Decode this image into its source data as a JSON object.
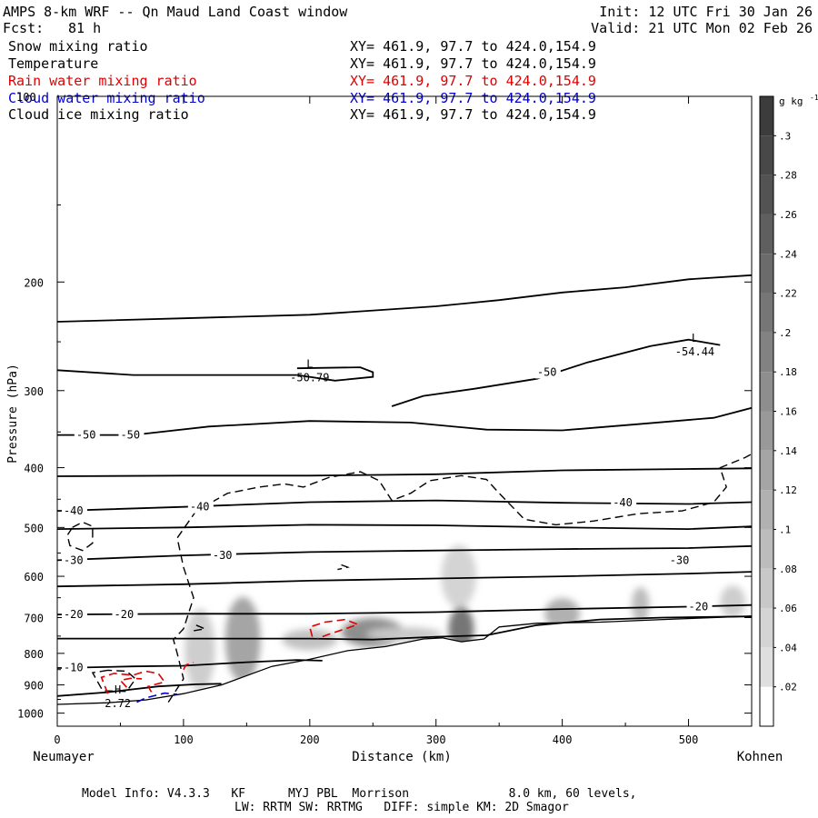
{
  "header": {
    "title": "AMPS 8-km WRF -- Qn Maud Land Coast window",
    "fcst_label": "Fcst:",
    "fcst_value": "81 h",
    "init": "Init: 12 UTC Fri 30 Jan 26",
    "valid": "Valid: 21 UTC Mon 02 Feb 26"
  },
  "fields": [
    {
      "name": "Snow mixing ratio",
      "xy": "XY= 461.9, 97.7 to 424.0,154.9",
      "color": "#000000"
    },
    {
      "name": "Temperature",
      "xy": "XY= 461.9, 97.7 to 424.0,154.9",
      "color": "#000000"
    },
    {
      "name": "Rain water mixing ratio",
      "xy": "XY= 461.9, 97.7 to 424.0,154.9",
      "color": "#e00000"
    },
    {
      "name": "Cloud water mixing ratio",
      "xy": "XY= 461.9, 97.7 to 424.0,154.9",
      "color": "#0000d0"
    },
    {
      "name": "Cloud ice mixing ratio",
      "xy": "XY= 461.9, 97.7 to 424.0,154.9",
      "color": "#000000"
    }
  ],
  "chart_data": {
    "type": "cross-section",
    "xlabel": "Distance (km)",
    "ylabel": "Pressure (hPa)",
    "xlim": [
      0,
      550
    ],
    "ylim": [
      1050,
      100
    ],
    "x_ticks": [
      0,
      100,
      200,
      300,
      400,
      500
    ],
    "y_ticks": [
      200,
      300,
      400,
      500,
      600,
      700,
      800,
      900,
      1000
    ],
    "y_tick_labels": [
      "200",
      "300",
      "400",
      "500",
      "600",
      "700",
      "800",
      "900",
      "1000"
    ],
    "top_left_tick_label": "100",
    "left_endpoint": "Neumayer",
    "right_endpoint": "Kohnen",
    "colorbar": {
      "unit": "g kg",
      "unit_exponent": "-1",
      "ticks": [
        ".02",
        ".04",
        ".06",
        ".08",
        ".1",
        ".12",
        ".14",
        ".16",
        ".18",
        ".2",
        ".22",
        ".24",
        ".26",
        ".28",
        ".3"
      ],
      "levels": [
        0.02,
        0.04,
        0.06,
        0.08,
        0.1,
        0.12,
        0.14,
        0.16,
        0.18,
        0.2,
        0.22,
        0.24,
        0.26,
        0.28,
        0.3
      ]
    },
    "terrain": [
      [
        0,
        968
      ],
      [
        40,
        962
      ],
      [
        70,
        952
      ],
      [
        100,
        930
      ],
      [
        130,
        900
      ],
      [
        170,
        840
      ],
      [
        200,
        818
      ],
      [
        230,
        792
      ],
      [
        260,
        780
      ],
      [
        290,
        758
      ],
      [
        305,
        755
      ],
      [
        320,
        766
      ],
      [
        338,
        758
      ],
      [
        350,
        725
      ],
      [
        380,
        715
      ],
      [
        430,
        712
      ],
      [
        480,
        705
      ],
      [
        520,
        700
      ],
      [
        550,
        696
      ]
    ],
    "isotherms": [
      {
        "t": -10,
        "pts": [
          [
            0,
            938
          ],
          [
            40,
            925
          ],
          [
            80,
            905
          ],
          [
            110,
            898
          ],
          [
            130,
            896
          ]
        ]
      },
      {
        "t": -10,
        "pts": [
          [
            0,
            845
          ],
          [
            60,
            840
          ],
          [
            100,
            838
          ],
          [
            150,
            827
          ],
          [
            190,
            820
          ],
          [
            210,
            822
          ]
        ]
      },
      {
        "t": -20,
        "pts": [
          [
            0,
            757
          ],
          [
            100,
            757
          ],
          [
            200,
            757
          ],
          [
            250,
            760
          ],
          [
            300,
            752
          ],
          [
            340,
            748
          ],
          [
            380,
            720
          ],
          [
            430,
            705
          ],
          [
            480,
            700
          ],
          [
            550,
            697
          ]
        ]
      },
      {
        "t": -20,
        "pts": [
          [
            0,
            692
          ],
          [
            100,
            690
          ],
          [
            200,
            690
          ],
          [
            300,
            686
          ],
          [
            400,
            678
          ],
          [
            500,
            672
          ],
          [
            550,
            668
          ]
        ]
      },
      {
        "t": -30,
        "pts": [
          [
            0,
            623
          ],
          [
            100,
            618
          ],
          [
            200,
            610
          ],
          [
            300,
            605
          ],
          [
            400,
            600
          ],
          [
            500,
            594
          ],
          [
            550,
            590
          ]
        ]
      },
      {
        "t": -30,
        "pts": [
          [
            0,
            565
          ],
          [
            100,
            555
          ],
          [
            200,
            548
          ],
          [
            300,
            545
          ],
          [
            400,
            542
          ],
          [
            500,
            540
          ],
          [
            550,
            536
          ]
        ]
      },
      {
        "t": -40,
        "pts": [
          [
            0,
            503
          ],
          [
            100,
            500
          ],
          [
            200,
            495
          ],
          [
            300,
            496
          ],
          [
            400,
            500
          ],
          [
            500,
            503
          ],
          [
            550,
            498
          ]
        ]
      },
      {
        "t": -40,
        "pts": [
          [
            0,
            470
          ],
          [
            100,
            463
          ],
          [
            200,
            455
          ],
          [
            300,
            452
          ],
          [
            400,
            456
          ],
          [
            500,
            458
          ],
          [
            550,
            455
          ]
        ]
      },
      {
        "t": -40,
        "pts": [
          [
            0,
            413
          ],
          [
            100,
            412
          ],
          [
            200,
            412
          ],
          [
            300,
            410
          ],
          [
            400,
            404
          ],
          [
            500,
            402
          ],
          [
            550,
            401
          ]
        ]
      },
      {
        "t": -50,
        "pts": [
          [
            0,
            354
          ],
          [
            60,
            354
          ],
          [
            120,
            343
          ],
          [
            200,
            336
          ],
          [
            280,
            338
          ],
          [
            340,
            347
          ],
          [
            400,
            348
          ],
          [
            460,
            340
          ],
          [
            520,
            332
          ],
          [
            550,
            320
          ]
        ]
      },
      {
        "t": -50,
        "pts": [
          [
            0,
            278
          ],
          [
            60,
            283
          ],
          [
            130,
            283
          ],
          [
            190,
            283
          ]
        ]
      },
      {
        "t": -50,
        "pts": [
          [
            190,
            283
          ],
          [
            220,
            289
          ],
          [
            250,
            285
          ],
          [
            250,
            280
          ],
          [
            240,
            275
          ],
          [
            190,
            276
          ]
        ]
      },
      {
        "t": -50,
        "pts": [
          [
            265,
            318
          ],
          [
            290,
            306
          ],
          [
            330,
            298
          ],
          [
            380,
            287
          ],
          [
            420,
            270
          ],
          [
            470,
            254
          ],
          [
            500,
            248
          ],
          [
            525,
            253
          ]
        ]
      },
      {
        "t": -60,
        "pts": [
          [
            0,
            232
          ],
          [
            100,
            229
          ],
          [
            200,
            226
          ],
          [
            300,
            219
          ],
          [
            350,
            214
          ],
          [
            400,
            208
          ],
          [
            450,
            204
          ],
          [
            500,
            198
          ],
          [
            550,
            195
          ]
        ]
      }
    ],
    "isotherm_labels": [
      {
        "text": "-10",
        "x": 5,
        "p": 843
      },
      {
        "text": "-20",
        "x": 5,
        "p": 692
      },
      {
        "text": "-20",
        "x": 45,
        "p": 692
      },
      {
        "text": "-20",
        "x": 500,
        "p": 672
      },
      {
        "text": "-30",
        "x": 5,
        "p": 565
      },
      {
        "text": "-30",
        "x": 123,
        "p": 555
      },
      {
        "text": "-30",
        "x": 485,
        "p": 565
      },
      {
        "text": "-40",
        "x": 5,
        "p": 470
      },
      {
        "text": "-40",
        "x": 105,
        "p": 463
      },
      {
        "text": "-40",
        "x": 440,
        "p": 456
      },
      {
        "text": "-50",
        "x": 15,
        "p": 354
      },
      {
        "text": "-50",
        "x": 50,
        "p": 354
      },
      {
        "text": "-50",
        "x": 380,
        "p": 280
      }
    ],
    "extrema": [
      {
        "kind": "L",
        "value": "-50.79",
        "x": 200,
        "p": 283
      },
      {
        "kind": "L",
        "value": "-54.44",
        "x": 505,
        "p": 257
      },
      {
        "kind": "H",
        "value": "2.72",
        "x": 48,
        "p": 955
      }
    ],
    "cloud_ice_contours": [
      [
        [
          88,
          960
        ],
        [
          100,
          880
        ],
        [
          95,
          800
        ],
        [
          92,
          760
        ],
        [
          100,
          730
        ],
        [
          108,
          650
        ],
        [
          100,
          580
        ],
        [
          95,
          520
        ],
        [
          110,
          470
        ],
        [
          135,
          440
        ],
        [
          160,
          430
        ],
        [
          180,
          425
        ],
        [
          195,
          430
        ],
        [
          215,
          415
        ],
        [
          240,
          406
        ],
        [
          255,
          420
        ],
        [
          265,
          452
        ],
        [
          280,
          440
        ],
        [
          295,
          420
        ],
        [
          320,
          412
        ],
        [
          340,
          418
        ],
        [
          350,
          440
        ],
        [
          370,
          485
        ],
        [
          395,
          495
        ],
        [
          425,
          488
        ],
        [
          460,
          475
        ],
        [
          495,
          470
        ],
        [
          520,
          455
        ],
        [
          530,
          430
        ],
        [
          525,
          400
        ],
        [
          545,
          385
        ],
        [
          550,
          380
        ]
      ],
      [
        [
          12,
          500
        ],
        [
          20,
          490
        ],
        [
          28,
          498
        ],
        [
          28,
          530
        ],
        [
          20,
          545
        ],
        [
          10,
          535
        ],
        [
          8,
          515
        ],
        [
          12,
          500
        ]
      ],
      [
        [
          40,
          852
        ],
        [
          28,
          860
        ],
        [
          36,
          920
        ],
        [
          55,
          922
        ],
        [
          62,
          880
        ],
        [
          55,
          855
        ],
        [
          40,
          852
        ]
      ],
      [
        [
          110,
          720
        ],
        [
          117,
          730
        ],
        [
          105,
          737
        ]
      ],
      [
        [
          225,
          575
        ],
        [
          230,
          580
        ],
        [
          222,
          585
        ]
      ]
    ],
    "rain_contours": [
      [
        [
          40,
          930
        ],
        [
          35,
          875
        ],
        [
          45,
          862
        ],
        [
          60,
          868
        ],
        [
          70,
          855
        ],
        [
          80,
          862
        ],
        [
          85,
          890
        ],
        [
          72,
          905
        ],
        [
          76,
          935
        ]
      ],
      [
        [
          55,
          908
        ],
        [
          50,
          885
        ],
        [
          58,
          878
        ],
        [
          67,
          880
        ]
      ],
      [
        [
          100,
          850
        ],
        [
          102,
          835
        ],
        [
          108,
          828
        ]
      ],
      [
        [
          202,
          752
        ],
        [
          200,
          725
        ],
        [
          212,
          712
        ],
        [
          228,
          705
        ],
        [
          238,
          718
        ],
        [
          228,
          730
        ],
        [
          215,
          745
        ],
        [
          206,
          757
        ]
      ]
    ],
    "cloud_water_contours": [
      [
        [
          63,
          960
        ],
        [
          70,
          945
        ],
        [
          85,
          928
        ],
        [
          95,
          932
        ]
      ]
    ],
    "snow_shading": [
      {
        "x": 147,
        "p": 820,
        "rx": 8,
        "rp": 70,
        "v": 0.26
      },
      {
        "x": 147,
        "p": 760,
        "rx": 14,
        "rp": 120,
        "v": 0.12
      },
      {
        "x": 113,
        "p": 790,
        "rx": 12,
        "rp": 120,
        "v": 0.05
      },
      {
        "x": 200,
        "p": 760,
        "rx": 22,
        "rp": 30,
        "v": 0.07
      },
      {
        "x": 250,
        "p": 740,
        "rx": 25,
        "rp": 40,
        "v": 0.16
      },
      {
        "x": 320,
        "p": 730,
        "rx": 10,
        "rp": 60,
        "v": 0.2
      },
      {
        "x": 318,
        "p": 600,
        "rx": 14,
        "rp": 70,
        "v": 0.04
      },
      {
        "x": 400,
        "p": 690,
        "rx": 14,
        "rp": 40,
        "v": 0.1
      },
      {
        "x": 462,
        "p": 668,
        "rx": 7,
        "rp": 45,
        "v": 0.08
      },
      {
        "x": 535,
        "p": 660,
        "rx": 10,
        "rp": 40,
        "v": 0.05
      },
      {
        "x": 275,
        "p": 745,
        "rx": 30,
        "rp": 20,
        "v": 0.06
      }
    ]
  },
  "footer": {
    "line1": "Model Info: V4.3.3   KF      MYJ PBL  Morrison              8.0 km, 60 levels,",
    "line2": "LW: RRTM SW: RRTMG   DIFF: simple KM: 2D Smagor"
  }
}
